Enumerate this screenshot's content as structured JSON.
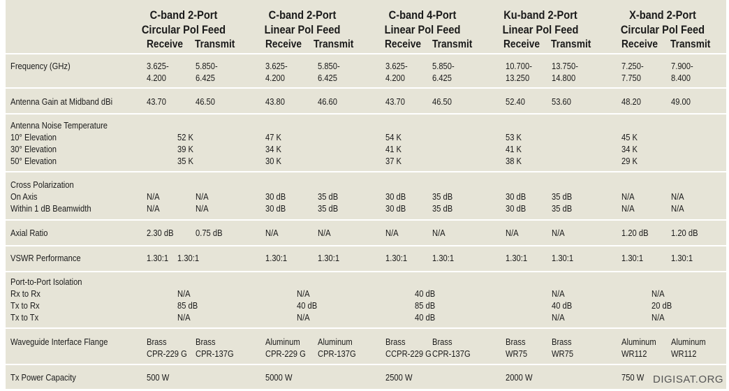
{
  "columns": [
    {
      "line1": "C-band 2-Port",
      "line2": "Circular Pol Feed",
      "receive": "Receive",
      "transmit": "Transmit"
    },
    {
      "line1": "C-band 2-Port",
      "line2": "Linear Pol Feed",
      "receive": "Receive",
      "transmit": "Transmit"
    },
    {
      "line1": "C-band 4-Port",
      "line2": "Linear Pol Feed",
      "receive": "Receive",
      "transmit": "Transmit"
    },
    {
      "line1": "Ku-band 2-Port",
      "line2": "Linear Pol Feed",
      "receive": "Receive",
      "transmit": "Transmit"
    },
    {
      "line1": "X-band 2-Port",
      "line2": "Circular Pol Feed",
      "receive": "Receive",
      "transmit": "Transmit"
    }
  ],
  "rows": {
    "frequency": {
      "label": "Frequency (GHz)",
      "values": [
        [
          "3.625-",
          "4.200",
          "5.850-",
          "6.425"
        ],
        [
          "3.625-",
          "4.200",
          "5.850-",
          "6.425"
        ],
        [
          "3.625-",
          "4.200",
          "5.850-",
          "6.425"
        ],
        [
          "10.700-",
          "13.250",
          "13.750-",
          "14.800"
        ],
        [
          "7.250-",
          "7.750",
          "7.900-",
          "8.400"
        ]
      ]
    },
    "gain": {
      "label": "Antenna Gain at Midband dBi",
      "values": [
        [
          "43.70",
          "46.50"
        ],
        [
          "43.80",
          "46.60"
        ],
        [
          "43.70",
          "46.50"
        ],
        [
          "52.40",
          "53.60"
        ],
        [
          "48.20",
          "49.00"
        ]
      ]
    },
    "noise": {
      "label": "Antenna Noise Temperature",
      "sub": [
        "10° Elevation",
        "30° Elevation",
        "50° Elevation"
      ],
      "values": [
        [
          "52 K",
          "39 K",
          "35 K"
        ],
        [
          "47 K",
          "34 K",
          "30 K"
        ],
        [
          "54 K",
          "41 K",
          "37 K"
        ],
        [
          "53 K",
          "41 K",
          "38 K"
        ],
        [
          "45 K",
          "34 K",
          "29 K"
        ]
      ]
    },
    "xpol": {
      "label": "Cross Polarization",
      "sub": [
        "On Axis",
        "Within 1 dB Beamwidth"
      ],
      "values": [
        [
          [
            "N/A",
            "N/A"
          ],
          [
            "N/A",
            "N/A"
          ]
        ],
        [
          [
            "30 dB",
            "30 dB"
          ],
          [
            "35 dB",
            "35 dB"
          ]
        ],
        [
          [
            "30 dB",
            "30 dB"
          ],
          [
            "35 dB",
            "35 dB"
          ]
        ],
        [
          [
            "30 dB",
            "30 dB"
          ],
          [
            "35 dB",
            "35 dB"
          ]
        ],
        [
          [
            "N/A",
            "N/A"
          ],
          [
            "N/A",
            "N/A"
          ]
        ]
      ]
    },
    "axial": {
      "label": "Axial Ratio",
      "values": [
        [
          "2.30 dB",
          "0.75 dB"
        ],
        [
          "N/A",
          "N/A"
        ],
        [
          "N/A",
          "N/A"
        ],
        [
          "N/A",
          "N/A"
        ],
        [
          "1.20 dB",
          "1.20 dB"
        ]
      ]
    },
    "vswr": {
      "label": "VSWR Performance",
      "values": [
        [
          "1.30:1",
          "1.30:1"
        ],
        [
          "1.30:1",
          "1.30:1"
        ],
        [
          "1.30:1",
          "1.30:1"
        ],
        [
          "1.30:1",
          "1.30:1"
        ],
        [
          "1.30:1",
          "1.30:1"
        ]
      ]
    },
    "isolation": {
      "label": "Port-to-Port Isolation",
      "sub": [
        "Rx to Rx",
        "Tx to Rx",
        "Tx to Tx"
      ],
      "values": [
        [
          "N/A",
          "85 dB",
          "N/A"
        ],
        [
          "N/A",
          "40 dB",
          "N/A"
        ],
        [
          "40 dB",
          "85 dB",
          "40 dB"
        ],
        [
          "N/A",
          "40 dB",
          "N/A"
        ],
        [
          "N/A",
          "20 dB",
          "N/A"
        ]
      ]
    },
    "flange": {
      "label": "Waveguide Interface Flange",
      "values": [
        [
          [
            "Brass",
            "CPR-229 G"
          ],
          [
            "Brass",
            "CPR-137G"
          ]
        ],
        [
          [
            "Aluminum",
            "CPR-229 G"
          ],
          [
            "Aluminum",
            "CPR-137G"
          ]
        ],
        [
          [
            "Brass",
            "CCPR-229 G"
          ],
          [
            "Brass",
            "CPR-137G"
          ]
        ],
        [
          [
            "Brass",
            "WR75"
          ],
          [
            "Brass",
            "WR75"
          ]
        ],
        [
          [
            "Aluminum",
            "WR112"
          ],
          [
            "Aluminum",
            "WR112"
          ]
        ]
      ]
    },
    "power": {
      "label": "Tx Power Capacity",
      "values": [
        "500 W",
        "5000 W",
        "2500 W",
        "2000 W",
        "750 W"
      ]
    }
  },
  "watermark": "DIGISAT.ORG"
}
